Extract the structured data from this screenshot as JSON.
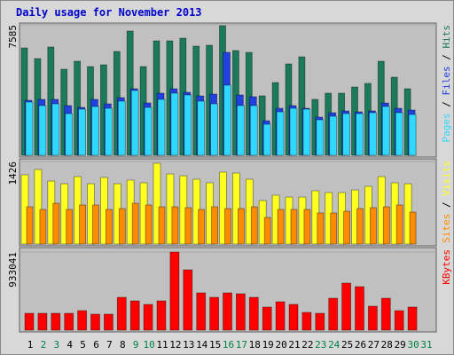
{
  "title": "Daily usage for November 2013",
  "separator": " / ",
  "chart_data": [
    {
      "type": "bar",
      "ylim": [
        0,
        7585
      ],
      "yticks": [
        7585
      ],
      "series": [
        {
          "name": "Hits",
          "color": "#1a7a5a",
          "values": [
            6243,
            5624,
            6295,
            5005,
            5469,
            5160,
            5263,
            6037,
            7224,
            5160,
            6656,
            6656,
            6811,
            6347,
            6398,
            7533,
            6089,
            5985,
            3457,
            4231,
            5315,
            5727,
            3251,
            3612,
            3612,
            3973,
            4179,
            5469,
            4541,
            3870,
            null
          ]
        },
        {
          "name": "Files",
          "color": "#2040e0",
          "values": [
            3199,
            3251,
            3251,
            2890,
            2786,
            3251,
            2993,
            3354,
            3870,
            3044,
            3612,
            3870,
            3664,
            3457,
            3560,
            5986,
            3509,
            3406,
            2012,
            2735,
            2890,
            2735,
            2219,
            2477,
            2580,
            2528,
            2580,
            3044,
            2735,
            2632,
            null
          ]
        },
        {
          "name": "Pages",
          "color": "#30d8ff",
          "values": [
            3096,
            2890,
            2993,
            2425,
            2683,
            2838,
            2735,
            3148,
            3767,
            2786,
            3251,
            3612,
            3509,
            3148,
            2993,
            4076,
            2890,
            2890,
            1806,
            2528,
            2735,
            2683,
            2064,
            2270,
            2425,
            2425,
            2477,
            2838,
            2477,
            2374,
            null
          ]
        }
      ]
    },
    {
      "type": "bar",
      "ylim": [
        0,
        1426
      ],
      "yticks": [
        1426
      ],
      "series": [
        {
          "name": "Visits",
          "color": "#ffff20",
          "values": [
            1196,
            1288,
            1088,
            1042,
            1165,
            1042,
            1150,
            1042,
            1104,
            1058,
            1395,
            1211,
            1180,
            1119,
            1058,
            1242,
            1226,
            1119,
            751,
            843,
            812,
            812,
            920,
            889,
            889,
            935,
            996,
            1165,
            1058,
            1042,
            null
          ]
        },
        {
          "name": "Sites",
          "color": "#ff8c00",
          "values": [
            644,
            598,
            705,
            598,
            675,
            675,
            598,
            613,
            705,
            675,
            644,
            644,
            629,
            598,
            644,
            613,
            613,
            644,
            460,
            598,
            598,
            598,
            537,
            537,
            567,
            613,
            629,
            644,
            675,
            552,
            null
          ]
        }
      ]
    },
    {
      "type": "bar",
      "ylim": [
        0,
        933041
      ],
      "yticks": [
        933041
      ],
      "series": [
        {
          "name": "KBytes",
          "color": "#ff0000",
          "values": [
            201457,
            201457,
            201457,
            201457,
            233266,
            190854,
            190854,
            392311,
            349899,
            307487,
            349899,
            933041,
            721004,
            445326,
            392311,
            445326,
            434723,
            392311,
            275678,
            339296,
            307487,
            212060,
            201457,
            381708,
            561959,
            519547,
            286281,
            381708,
            233266,
            275678,
            null
          ]
        }
      ],
      "categories": [
        "1",
        "2",
        "3",
        "4",
        "5",
        "6",
        "7",
        "8",
        "9",
        "10",
        "11",
        "12",
        "13",
        "14",
        "15",
        "16",
        "17",
        "18",
        "19",
        "20",
        "21",
        "22",
        "23",
        "24",
        "25",
        "26",
        "27",
        "28",
        "29",
        "30",
        "31"
      ],
      "category_colors": [
        "#000000",
        "#00804a",
        "#00804a",
        "#000000",
        "#000000",
        "#000000",
        "#000000",
        "#000000",
        "#00804a",
        "#00804a",
        "#000000",
        "#000000",
        "#000000",
        "#000000",
        "#000000",
        "#00804a",
        "#00804a",
        "#000000",
        "#000000",
        "#000000",
        "#000000",
        "#000000",
        "#00804a",
        "#00804a",
        "#000000",
        "#000000",
        "#000000",
        "#000000",
        "#000000",
        "#00804a",
        "#00804a"
      ]
    }
  ]
}
